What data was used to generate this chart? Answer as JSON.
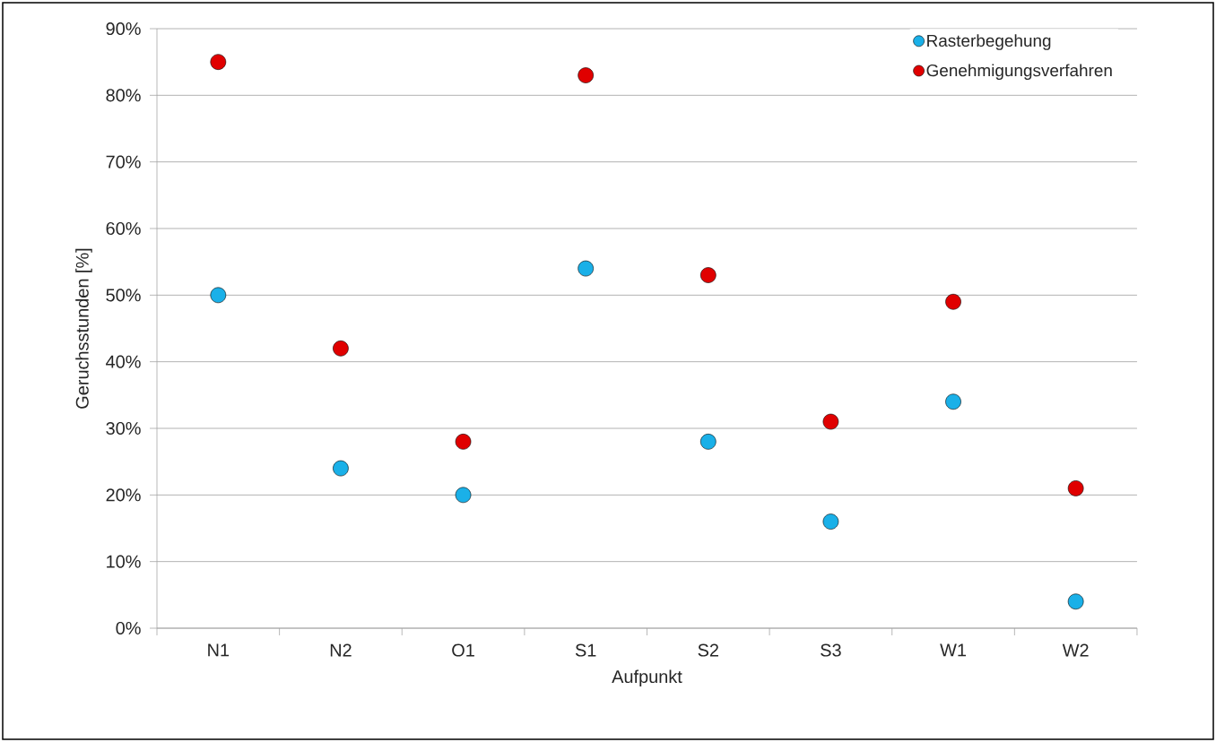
{
  "chart_data": {
    "type": "scatter",
    "xlabel": "Aufpunkt",
    "ylabel": "Geruchsstunden [%]",
    "categories": [
      "N1",
      "N2",
      "O1",
      "S1",
      "S2",
      "S3",
      "W1",
      "W2"
    ],
    "series": [
      {
        "name": "Rasterbegehung",
        "color": "#1ab0e8",
        "values": [
          50,
          24,
          20,
          54,
          28,
          16,
          34,
          4
        ]
      },
      {
        "name": "Genehmigungsverfahren",
        "color": "#e00000",
        "values": [
          85,
          42,
          28,
          83,
          53,
          31,
          49,
          21
        ]
      }
    ],
    "ylim": [
      0,
      90
    ],
    "yticks": [
      {
        "value": 0,
        "label": "0%"
      },
      {
        "value": 10,
        "label": "10%"
      },
      {
        "value": 20,
        "label": "20%"
      },
      {
        "value": 30,
        "label": "30%"
      },
      {
        "value": 40,
        "label": "40%"
      },
      {
        "value": 50,
        "label": "50%"
      },
      {
        "value": 60,
        "label": "60%"
      },
      {
        "value": 70,
        "label": "70%"
      },
      {
        "value": 80,
        "label": "80%"
      },
      {
        "value": 90,
        "label": "90%"
      }
    ],
    "grid": "y",
    "legend": "top right",
    "marker": "circle"
  }
}
